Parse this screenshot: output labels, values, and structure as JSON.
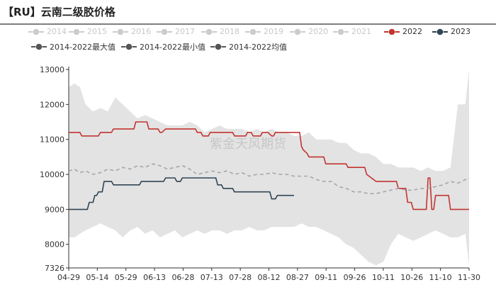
{
  "title": "【RU】云南二级胶价格",
  "chart_data": {
    "type": "line",
    "title": "【RU】云南二级胶价格",
    "xlabel": "",
    "ylabel": "",
    "ylim": [
      7326,
      13000
    ],
    "y_ticks": [
      7326,
      8000,
      9000,
      10000,
      11000,
      12000,
      13000
    ],
    "x_ticks": [
      "04-29",
      "05-14",
      "05-29",
      "06-13",
      "06-28",
      "07-13",
      "07-28",
      "08-12",
      "08-27",
      "09-11",
      "09-26",
      "10-11",
      "10-26",
      "11-10",
      "11-30"
    ],
    "grid": false,
    "legend_position": "top",
    "watermark": "紫金天风期货",
    "legend": [
      {
        "name": "2014",
        "color": "#cccccc",
        "active": false
      },
      {
        "name": "2015",
        "color": "#cccccc",
        "active": false
      },
      {
        "name": "2016",
        "color": "#cccccc",
        "active": false
      },
      {
        "name": "2017",
        "color": "#cccccc",
        "active": false
      },
      {
        "name": "2018",
        "color": "#cccccc",
        "active": false
      },
      {
        "name": "2019",
        "color": "#cccccc",
        "active": false
      },
      {
        "name": "2020",
        "color": "#cccccc",
        "active": false
      },
      {
        "name": "2021",
        "color": "#cccccc",
        "active": false
      },
      {
        "name": "2022",
        "color": "#c23531",
        "active": true
      },
      {
        "name": "2023",
        "color": "#2f4554",
        "active": true
      },
      {
        "name": "2014-2022最大值",
        "color": "#555555",
        "active": true
      },
      {
        "name": "2014-2022最小值",
        "color": "#555555",
        "active": true
      },
      {
        "name": "2014-2022均值",
        "color": "#555555",
        "active": true
      }
    ],
    "range_band": {
      "name": "2014-2022最大值/最小值",
      "color": "#e3e3e3",
      "x": [
        "04-29",
        "05-02",
        "05-05",
        "05-08",
        "05-12",
        "05-16",
        "05-20",
        "05-24",
        "05-28",
        "06-01",
        "06-05",
        "06-09",
        "06-13",
        "06-17",
        "06-21",
        "06-25",
        "06-29",
        "07-03",
        "07-07",
        "07-11",
        "07-15",
        "07-19",
        "07-23",
        "07-27",
        "07-31",
        "08-04",
        "08-08",
        "08-12",
        "08-16",
        "08-20",
        "08-24",
        "08-28",
        "09-01",
        "09-05",
        "09-09",
        "09-13",
        "09-17",
        "09-21",
        "09-25",
        "09-29",
        "10-03",
        "10-07",
        "10-11",
        "10-15",
        "10-19",
        "10-23",
        "10-27",
        "10-31",
        "11-04",
        "11-08",
        "11-12",
        "11-16",
        "11-20",
        "11-24",
        "11-28",
        "11-30"
      ],
      "max": [
        12500,
        12600,
        12500,
        12000,
        11800,
        11900,
        11800,
        12200,
        12000,
        11800,
        11600,
        11700,
        11600,
        11500,
        11400,
        11400,
        11400,
        11500,
        11400,
        11200,
        11300,
        11400,
        11300,
        11300,
        11300,
        11200,
        11300,
        11200,
        11300,
        11200,
        11200,
        11100,
        11100,
        11200,
        11000,
        11000,
        11000,
        10900,
        10900,
        10700,
        10600,
        10600,
        10500,
        10300,
        10300,
        10200,
        10200,
        10200,
        10100,
        10200,
        10100,
        10100,
        10200,
        12000,
        12000,
        13000
      ],
      "min": [
        8200,
        8200,
        8300,
        8400,
        8500,
        8600,
        8500,
        8400,
        8200,
        8400,
        8500,
        8300,
        8400,
        8200,
        8300,
        8400,
        8200,
        8300,
        8400,
        8300,
        8400,
        8400,
        8300,
        8400,
        8400,
        8500,
        8400,
        8400,
        8500,
        8500,
        8500,
        8500,
        8600,
        8500,
        8500,
        8400,
        8300,
        8200,
        8000,
        7900,
        7700,
        7500,
        7400,
        7500,
        8000,
        8300,
        8200,
        8100,
        8200,
        8300,
        8400,
        8300,
        8200,
        8200,
        8300,
        7400
      ]
    },
    "series": [
      {
        "name": "2022",
        "color": "#c23531",
        "dash": false,
        "x": [
          "04-29",
          "05-05",
          "05-06",
          "05-15",
          "05-16",
          "05-22",
          "05-23",
          "06-03",
          "06-04",
          "06-10",
          "06-11",
          "06-16",
          "06-17",
          "06-18",
          "06-20",
          "06-21",
          "06-22",
          "07-06",
          "07-07",
          "07-09",
          "07-10",
          "07-13",
          "07-14",
          "07-26",
          "07-27",
          "08-02",
          "08-03",
          "08-05",
          "08-06",
          "08-10",
          "08-11",
          "08-12",
          "08-14",
          "08-16",
          "08-17",
          "08-18",
          "08-19",
          "08-22",
          "08-23",
          "08-31",
          "09-01",
          "09-02",
          "09-04",
          "09-05",
          "09-13",
          "09-14",
          "09-25",
          "09-26",
          "10-05",
          "10-06",
          "10-11",
          "10-12",
          "10-22",
          "10-23",
          "10-27",
          "10-28",
          "10-30",
          "10-31",
          "11-07",
          "11-08",
          "11-09",
          "11-10",
          "11-11",
          "11-12",
          "11-13",
          "11-19",
          "11-20",
          "11-30"
        ],
        "values": [
          11200,
          11200,
          11100,
          11100,
          11200,
          11200,
          11300,
          11300,
          11500,
          11500,
          11300,
          11300,
          11200,
          11200,
          11300,
          11300,
          11300,
          11300,
          11200,
          11200,
          11100,
          11100,
          11200,
          11200,
          11100,
          11100,
          11200,
          11200,
          11100,
          11100,
          11200,
          11200,
          11200,
          11100,
          11100,
          11200,
          11200,
          11200,
          11200,
          11200,
          10800,
          10700,
          10600,
          10500,
          10500,
          10300,
          10300,
          10200,
          10200,
          10000,
          9800,
          9800,
          9800,
          9600,
          9600,
          9200,
          9200,
          9000,
          9000,
          9900,
          9900,
          9000,
          9000,
          9400,
          9400,
          9400,
          9000,
          9000
        ]
      },
      {
        "name": "2023",
        "color": "#2f4554",
        "dash": false,
        "x": [
          "04-29",
          "05-09",
          "05-10",
          "05-12",
          "05-13",
          "05-14",
          "05-15",
          "05-17",
          "05-18",
          "05-22",
          "05-23",
          "05-25",
          "05-26",
          "06-06",
          "06-07",
          "06-19",
          "06-20",
          "06-25",
          "06-26",
          "06-28",
          "06-29",
          "07-17",
          "07-18",
          "07-20",
          "07-21",
          "07-26",
          "07-27",
          "08-07",
          "08-08",
          "08-15",
          "08-16",
          "08-18",
          "08-19",
          "08-28"
        ],
        "values": [
          9000,
          9000,
          9200,
          9200,
          9400,
          9400,
          9500,
          9500,
          9800,
          9800,
          9700,
          9700,
          9700,
          9700,
          9800,
          9800,
          9900,
          9900,
          9800,
          9800,
          9900,
          9900,
          9700,
          9700,
          9600,
          9600,
          9500,
          9500,
          9500,
          9500,
          9300,
          9300,
          9400,
          9400
        ]
      },
      {
        "name": "2014-2022均值",
        "color": "#a6a6a6",
        "dash": true,
        "x": [
          "04-29",
          "05-02",
          "05-05",
          "05-08",
          "05-12",
          "05-16",
          "05-20",
          "05-24",
          "05-28",
          "06-01",
          "06-05",
          "06-09",
          "06-13",
          "06-17",
          "06-21",
          "06-25",
          "06-29",
          "07-03",
          "07-07",
          "07-11",
          "07-15",
          "07-19",
          "07-23",
          "07-27",
          "07-31",
          "08-04",
          "08-08",
          "08-12",
          "08-16",
          "08-20",
          "08-24",
          "08-28",
          "09-01",
          "09-05",
          "09-09",
          "09-13",
          "09-17",
          "09-21",
          "09-25",
          "09-29",
          "10-03",
          "10-07",
          "10-11",
          "10-15",
          "10-19",
          "10-23",
          "10-27",
          "10-31",
          "11-04",
          "11-08",
          "11-12",
          "11-16",
          "11-20",
          "11-24",
          "11-28",
          "11-30"
        ],
        "values": [
          10100,
          10150,
          10050,
          10100,
          10000,
          10050,
          10150,
          10100,
          10200,
          10150,
          10250,
          10200,
          10300,
          10250,
          10150,
          10200,
          10250,
          10150,
          10000,
          10050,
          10100,
          10050,
          10100,
          10000,
          10050,
          9950,
          10000,
          10000,
          10050,
          10000,
          10000,
          9950,
          9950,
          9950,
          9850,
          9800,
          9800,
          9650,
          9600,
          9500,
          9500,
          9450,
          9450,
          9500,
          9550,
          9600,
          9550,
          9550,
          9600,
          9600,
          9650,
          9700,
          9800,
          9750,
          9850,
          9900
        ]
      }
    ]
  }
}
